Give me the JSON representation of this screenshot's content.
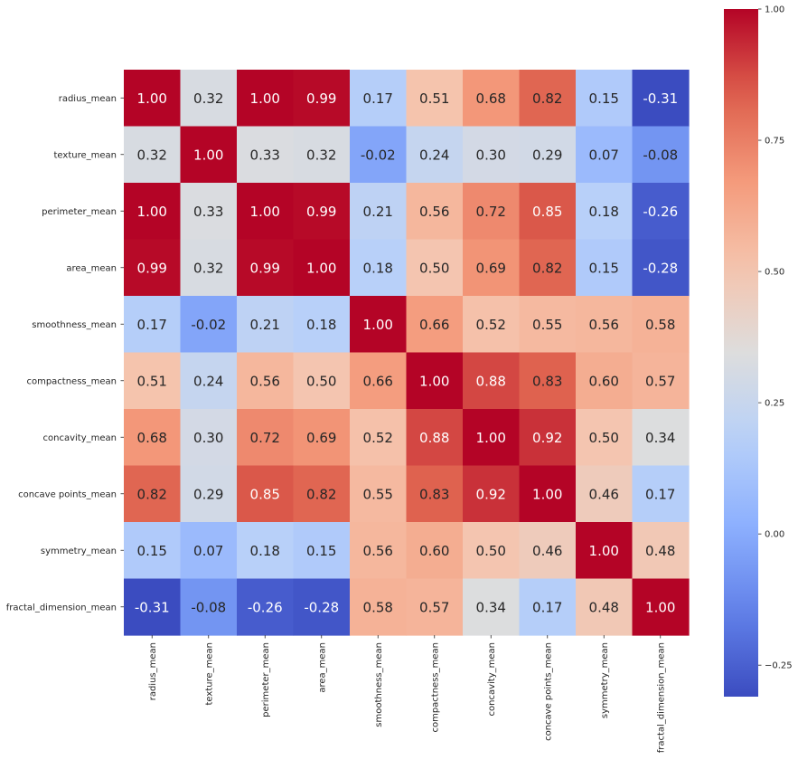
{
  "chart_data": {
    "type": "heatmap",
    "title": "",
    "xlabel": "",
    "ylabel": "",
    "colormap": "coolwarm",
    "annotations": true,
    "annotation_format": "0.00",
    "labels": [
      "radius_mean",
      "texture_mean",
      "perimeter_mean",
      "area_mean",
      "smoothness_mean",
      "compactness_mean",
      "concavity_mean",
      "concave points_mean",
      "symmetry_mean",
      "fractal_dimension_mean"
    ],
    "matrix": [
      [
        1.0,
        0.32,
        1.0,
        0.99,
        0.17,
        0.51,
        0.68,
        0.82,
        0.15,
        -0.31
      ],
      [
        0.32,
        1.0,
        0.33,
        0.32,
        -0.02,
        0.24,
        0.3,
        0.29,
        0.07,
        -0.08
      ],
      [
        1.0,
        0.33,
        1.0,
        0.99,
        0.21,
        0.56,
        0.72,
        0.85,
        0.18,
        -0.26
      ],
      [
        0.99,
        0.32,
        0.99,
        1.0,
        0.18,
        0.5,
        0.69,
        0.82,
        0.15,
        -0.28
      ],
      [
        0.17,
        -0.02,
        0.21,
        0.18,
        1.0,
        0.66,
        0.52,
        0.55,
        0.56,
        0.58
      ],
      [
        0.51,
        0.24,
        0.56,
        0.5,
        0.66,
        1.0,
        0.88,
        0.83,
        0.6,
        0.57
      ],
      [
        0.68,
        0.3,
        0.72,
        0.69,
        0.52,
        0.88,
        1.0,
        0.92,
        0.5,
        0.34
      ],
      [
        0.82,
        0.29,
        0.85,
        0.82,
        0.55,
        0.83,
        0.92,
        1.0,
        0.46,
        0.17
      ],
      [
        0.15,
        0.07,
        0.18,
        0.15,
        0.56,
        0.6,
        0.5,
        0.46,
        1.0,
        0.48
      ],
      [
        -0.31,
        -0.08,
        -0.26,
        -0.28,
        0.58,
        0.57,
        0.34,
        0.17,
        0.48,
        1.0
      ]
    ],
    "colorbar": {
      "range": [
        -0.31,
        1.0
      ],
      "ticks": [
        -0.25,
        0.0,
        0.25,
        0.5,
        0.75,
        1.0
      ],
      "tick_labels": [
        "−0.25",
        "0.00",
        "0.25",
        "0.50",
        "0.75",
        "1.00"
      ],
      "placement": "right"
    },
    "colors": {
      "text_dark": "#262626",
      "text_light": "#ffffff"
    }
  }
}
